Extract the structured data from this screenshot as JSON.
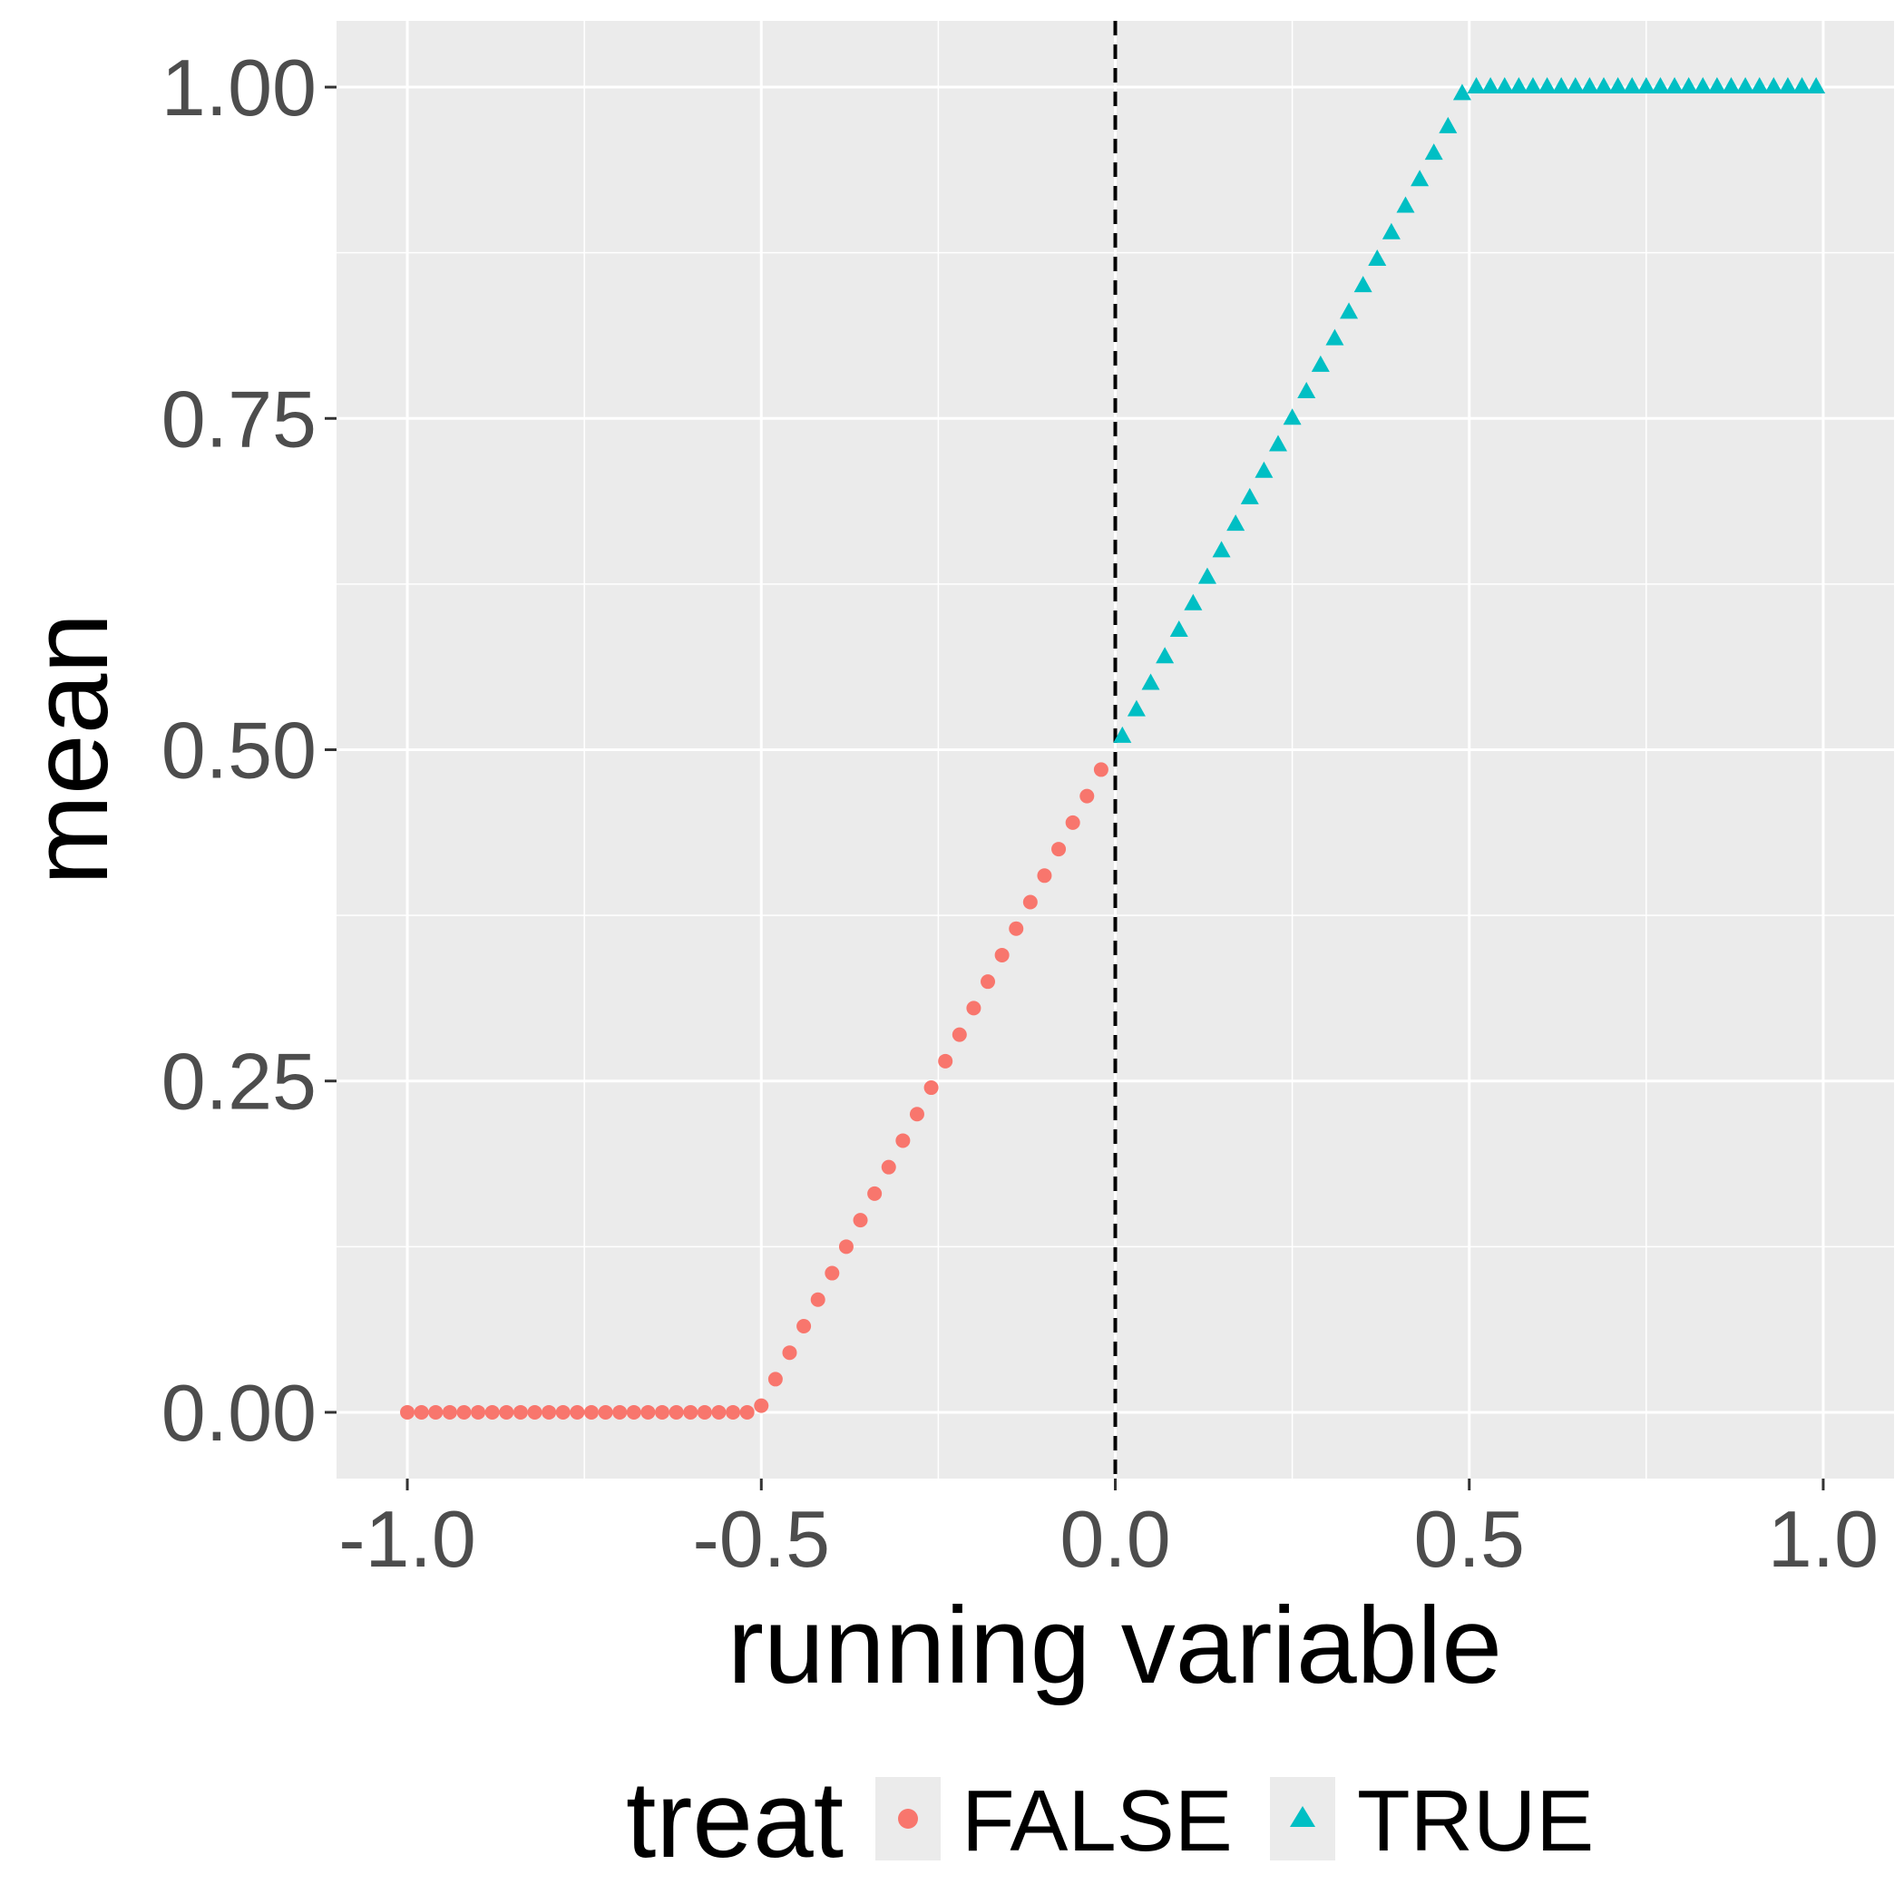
{
  "chart_data": {
    "type": "scatter",
    "title": "",
    "xlabel": "running variable",
    "ylabel": "mean",
    "xlim": [
      -1.1,
      1.1
    ],
    "ylim": [
      -0.05,
      1.05
    ],
    "x_ticks": [
      "-1.0",
      "-0.5",
      "0.0",
      "0.5",
      "1.0"
    ],
    "y_ticks": [
      "0.00",
      "0.25",
      "0.50",
      "0.75",
      "1.00"
    ],
    "x_tick_values": [
      -1.0,
      -0.5,
      0.0,
      0.5,
      1.0
    ],
    "y_tick_values": [
      0.0,
      0.25,
      0.5,
      0.75,
      1.0
    ],
    "grid": true,
    "cutoff_line": {
      "x": 0.0,
      "style": "dashed",
      "color": "#000000"
    },
    "legend": {
      "title": "treat",
      "position": "bottom",
      "entries": [
        "FALSE",
        "TRUE"
      ]
    },
    "series": [
      {
        "name": "FALSE",
        "shape": "circle",
        "color": "#F8766D",
        "x": [
          -1.0,
          -0.98,
          -0.96,
          -0.94,
          -0.92,
          -0.9,
          -0.88,
          -0.86,
          -0.84,
          -0.82,
          -0.8,
          -0.78,
          -0.76,
          -0.74,
          -0.72,
          -0.7,
          -0.68,
          -0.66,
          -0.64,
          -0.62,
          -0.6,
          -0.58,
          -0.56,
          -0.54,
          -0.52,
          -0.5,
          -0.48,
          -0.46,
          -0.44,
          -0.42,
          -0.4,
          -0.38,
          -0.36,
          -0.34,
          -0.32,
          -0.3,
          -0.28,
          -0.26,
          -0.24,
          -0.22,
          -0.2,
          -0.18,
          -0.16,
          -0.14,
          -0.12,
          -0.1,
          -0.08,
          -0.06,
          -0.04,
          -0.02
        ],
        "y": [
          0,
          0,
          0,
          0,
          0,
          0,
          0,
          0,
          0,
          0,
          0,
          0,
          0,
          0,
          0,
          0,
          0,
          0,
          0,
          0,
          0,
          0,
          0,
          0,
          0,
          0.005,
          0.025,
          0.045,
          0.065,
          0.085,
          0.105,
          0.125,
          0.145,
          0.165,
          0.185,
          0.205,
          0.225,
          0.245,
          0.265,
          0.285,
          0.305,
          0.325,
          0.345,
          0.365,
          0.385,
          0.405,
          0.425,
          0.445,
          0.465,
          0.485
        ]
      },
      {
        "name": "TRUE",
        "shape": "triangle",
        "color": "#00BFC4",
        "x": [
          0.01,
          0.03,
          0.05,
          0.07,
          0.09,
          0.11,
          0.13,
          0.15,
          0.17,
          0.19,
          0.21,
          0.23,
          0.25,
          0.27,
          0.29,
          0.31,
          0.33,
          0.35,
          0.37,
          0.39,
          0.41,
          0.43,
          0.45,
          0.47,
          0.49,
          0.51,
          0.53,
          0.55,
          0.57,
          0.59,
          0.61,
          0.63,
          0.65,
          0.67,
          0.69,
          0.71,
          0.73,
          0.75,
          0.77,
          0.79,
          0.81,
          0.83,
          0.85,
          0.87,
          0.89,
          0.91,
          0.93,
          0.95,
          0.97,
          0.99
        ],
        "y": [
          0.51,
          0.53,
          0.55,
          0.57,
          0.59,
          0.61,
          0.63,
          0.65,
          0.67,
          0.69,
          0.71,
          0.73,
          0.75,
          0.77,
          0.79,
          0.81,
          0.83,
          0.85,
          0.87,
          0.89,
          0.91,
          0.93,
          0.95,
          0.97,
          0.995,
          1,
          1,
          1,
          1,
          1,
          1,
          1,
          1,
          1,
          1,
          1,
          1,
          1,
          1,
          1,
          1,
          1,
          1,
          1,
          1,
          1,
          1,
          1,
          1,
          1
        ]
      }
    ]
  }
}
